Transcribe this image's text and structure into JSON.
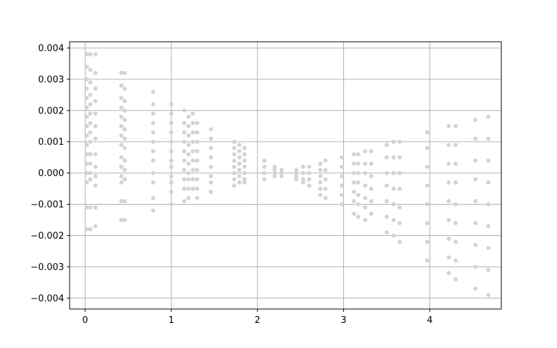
{
  "chart_data": {
    "type": "scatter",
    "title": "",
    "xlabel": "",
    "ylabel": "",
    "xlim": [
      -0.18,
      4.83
    ],
    "ylim": [
      -0.00435,
      0.0042
    ],
    "grid": true,
    "point_color": "#d3d3d3",
    "grid_color": "#b0b0b0",
    "x_ticks": [
      {
        "value": 0,
        "label": "0"
      },
      {
        "value": 1,
        "label": "1"
      },
      {
        "value": 2,
        "label": "2"
      },
      {
        "value": 3,
        "label": "3"
      },
      {
        "value": 4,
        "label": "4"
      }
    ],
    "y_ticks": [
      {
        "value": 0.004,
        "label": "0.004"
      },
      {
        "value": 0.003,
        "label": "0.003"
      },
      {
        "value": 0.002,
        "label": "0.002"
      },
      {
        "value": 0.001,
        "label": "0.001"
      },
      {
        "value": 0.0,
        "label": "0.000"
      },
      {
        "value": -0.001,
        "label": "−0.001"
      },
      {
        "value": -0.002,
        "label": "−0.002"
      },
      {
        "value": -0.003,
        "label": "−0.003"
      },
      {
        "value": -0.004,
        "label": "−0.004"
      }
    ],
    "series": [
      {
        "points": [
          [
            0.02,
            0.0038
          ],
          [
            0.02,
            0.0034
          ],
          [
            0.02,
            0.003
          ],
          [
            0.02,
            0.0027
          ],
          [
            0.02,
            0.0024
          ],
          [
            0.02,
            0.0021
          ],
          [
            0.02,
            0.0018
          ],
          [
            0.02,
            0.0015
          ],
          [
            0.02,
            0.0012
          ],
          [
            0.02,
            0.0009
          ],
          [
            0.02,
            0.0006
          ],
          [
            0.02,
            0.0003
          ],
          [
            0.02,
            0.0
          ],
          [
            0.02,
            -0.0003
          ],
          [
            0.02,
            -0.0011
          ],
          [
            0.02,
            -0.0018
          ],
          [
            0.06,
            0.0038
          ],
          [
            0.06,
            0.0033
          ],
          [
            0.06,
            0.0029
          ],
          [
            0.06,
            0.0025
          ],
          [
            0.06,
            0.0022
          ],
          [
            0.06,
            0.0019
          ],
          [
            0.06,
            0.0016
          ],
          [
            0.06,
            0.0013
          ],
          [
            0.06,
            0.001
          ],
          [
            0.06,
            0.0006
          ],
          [
            0.06,
            0.0003
          ],
          [
            0.06,
            0.0
          ],
          [
            0.06,
            -0.0002
          ],
          [
            0.06,
            -0.0011
          ],
          [
            0.06,
            -0.0018
          ],
          [
            0.12,
            0.0038
          ],
          [
            0.12,
            0.0032
          ],
          [
            0.12,
            0.0027
          ],
          [
            0.12,
            0.0023
          ],
          [
            0.12,
            0.0019
          ],
          [
            0.12,
            0.0015
          ],
          [
            0.12,
            0.0011
          ],
          [
            0.12,
            0.0006
          ],
          [
            0.12,
            0.0002
          ],
          [
            0.12,
            -0.0001
          ],
          [
            0.12,
            -0.0004
          ],
          [
            0.12,
            -0.0011
          ],
          [
            0.12,
            -0.0017
          ],
          [
            0.42,
            0.0032
          ],
          [
            0.42,
            0.0028
          ],
          [
            0.42,
            0.0024
          ],
          [
            0.42,
            0.0021
          ],
          [
            0.42,
            0.0018
          ],
          [
            0.42,
            0.0015
          ],
          [
            0.42,
            0.0012
          ],
          [
            0.42,
            0.0009
          ],
          [
            0.42,
            0.0005
          ],
          [
            0.42,
            0.0002
          ],
          [
            0.42,
            -0.0001
          ],
          [
            0.42,
            -0.0003
          ],
          [
            0.42,
            -0.0009
          ],
          [
            0.42,
            -0.0015
          ],
          [
            0.46,
            0.0032
          ],
          [
            0.46,
            0.0027
          ],
          [
            0.46,
            0.0023
          ],
          [
            0.46,
            0.002
          ],
          [
            0.46,
            0.0017
          ],
          [
            0.46,
            0.0014
          ],
          [
            0.46,
            0.0011
          ],
          [
            0.46,
            0.0008
          ],
          [
            0.46,
            0.0004
          ],
          [
            0.46,
            0.0001
          ],
          [
            0.46,
            -0.0002
          ],
          [
            0.46,
            -0.0009
          ],
          [
            0.46,
            -0.0015
          ],
          [
            0.79,
            0.0026
          ],
          [
            0.79,
            0.0022
          ],
          [
            0.79,
            0.0019
          ],
          [
            0.79,
            0.0016
          ],
          [
            0.79,
            0.0013
          ],
          [
            0.79,
            0.001
          ],
          [
            0.79,
            0.0007
          ],
          [
            0.79,
            0.0004
          ],
          [
            0.79,
            0.0
          ],
          [
            0.79,
            -0.0003
          ],
          [
            0.79,
            -0.0008
          ],
          [
            0.79,
            -0.0012
          ],
          [
            1.0,
            0.0022
          ],
          [
            1.0,
            0.0019
          ],
          [
            1.0,
            0.0016
          ],
          [
            1.0,
            0.0013
          ],
          [
            1.0,
            0.001
          ],
          [
            1.0,
            0.0007
          ],
          [
            1.0,
            0.0004
          ],
          [
            1.0,
            0.0002
          ],
          [
            1.0,
            -0.0001
          ],
          [
            1.0,
            -0.0003
          ],
          [
            1.0,
            -0.0006
          ],
          [
            1.0,
            -0.001
          ],
          [
            1.15,
            0.002
          ],
          [
            1.15,
            0.0016
          ],
          [
            1.15,
            0.0013
          ],
          [
            1.15,
            0.001
          ],
          [
            1.15,
            0.0007
          ],
          [
            1.15,
            0.0004
          ],
          [
            1.15,
            0.0001
          ],
          [
            1.15,
            -0.0002
          ],
          [
            1.15,
            -0.0005
          ],
          [
            1.15,
            -0.0009
          ],
          [
            1.2,
            0.0018
          ],
          [
            1.2,
            0.0015
          ],
          [
            1.2,
            0.0012
          ],
          [
            1.2,
            0.0009
          ],
          [
            1.2,
            0.0006
          ],
          [
            1.2,
            0.0003
          ],
          [
            1.2,
            0.0
          ],
          [
            1.2,
            -0.0002
          ],
          [
            1.2,
            -0.0005
          ],
          [
            1.2,
            -0.0008
          ],
          [
            1.25,
            0.0019
          ],
          [
            1.25,
            0.0016
          ],
          [
            1.25,
            0.0013
          ],
          [
            1.25,
            0.001
          ],
          [
            1.25,
            0.0007
          ],
          [
            1.25,
            0.0004
          ],
          [
            1.25,
            0.0001
          ],
          [
            1.25,
            -0.0002
          ],
          [
            1.25,
            -0.0005
          ],
          [
            1.3,
            0.0016
          ],
          [
            1.3,
            0.0013
          ],
          [
            1.3,
            0.001
          ],
          [
            1.3,
            0.0007
          ],
          [
            1.3,
            0.0004
          ],
          [
            1.3,
            0.0001
          ],
          [
            1.3,
            -0.0002
          ],
          [
            1.3,
            -0.0005
          ],
          [
            1.3,
            -0.0008
          ],
          [
            1.46,
            0.0014
          ],
          [
            1.46,
            0.0011
          ],
          [
            1.46,
            0.0008
          ],
          [
            1.46,
            0.0005
          ],
          [
            1.46,
            0.0002
          ],
          [
            1.46,
            -0.0001
          ],
          [
            1.46,
            -0.0003
          ],
          [
            1.46,
            -0.0006
          ],
          [
            1.73,
            0.001
          ],
          [
            1.73,
            0.0008
          ],
          [
            1.73,
            0.0006
          ],
          [
            1.73,
            0.0004
          ],
          [
            1.73,
            0.0002
          ],
          [
            1.73,
            0.0
          ],
          [
            1.73,
            -0.0002
          ],
          [
            1.73,
            -0.0004
          ],
          [
            1.79,
            0.0009
          ],
          [
            1.79,
            0.0007
          ],
          [
            1.79,
            0.0005
          ],
          [
            1.79,
            0.0003
          ],
          [
            1.79,
            0.0001
          ],
          [
            1.79,
            -0.0001
          ],
          [
            1.79,
            -0.0003
          ],
          [
            1.85,
            0.0008
          ],
          [
            1.85,
            0.0006
          ],
          [
            1.85,
            0.0004
          ],
          [
            1.85,
            0.0002
          ],
          [
            1.85,
            0.0
          ],
          [
            1.85,
            -0.0002
          ],
          [
            1.85,
            -0.0003
          ],
          [
            2.08,
            0.0004
          ],
          [
            2.08,
            0.0002
          ],
          [
            2.08,
            0.0
          ],
          [
            2.08,
            -0.0002
          ],
          [
            2.2,
            0.0002
          ],
          [
            2.2,
            0.0001
          ],
          [
            2.2,
            0.0
          ],
          [
            2.2,
            -0.0001
          ],
          [
            2.28,
            0.0001
          ],
          [
            2.28,
            0.0
          ],
          [
            2.28,
            -0.0001
          ],
          [
            2.45,
            0.0001
          ],
          [
            2.45,
            0.0
          ],
          [
            2.45,
            -0.0001
          ],
          [
            2.45,
            -0.0002
          ],
          [
            2.53,
            0.0002
          ],
          [
            2.53,
            0.0
          ],
          [
            2.53,
            -0.0002
          ],
          [
            2.53,
            -0.0003
          ],
          [
            2.6,
            0.0002
          ],
          [
            2.6,
            0.0
          ],
          [
            2.6,
            -0.0002
          ],
          [
            2.6,
            -0.0004
          ],
          [
            2.73,
            0.0003
          ],
          [
            2.73,
            0.0001
          ],
          [
            2.73,
            -0.0001
          ],
          [
            2.73,
            -0.0003
          ],
          [
            2.73,
            -0.0005
          ],
          [
            2.73,
            -0.0007
          ],
          [
            2.79,
            0.0004
          ],
          [
            2.79,
            0.0001
          ],
          [
            2.79,
            -0.0002
          ],
          [
            2.79,
            -0.0005
          ],
          [
            2.79,
            -0.0008
          ],
          [
            2.98,
            0.0005
          ],
          [
            2.98,
            0.0002
          ],
          [
            2.98,
            -0.0001
          ],
          [
            2.98,
            -0.0004
          ],
          [
            2.98,
            -0.0007
          ],
          [
            2.98,
            -0.001
          ],
          [
            3.12,
            0.0006
          ],
          [
            3.12,
            0.0003
          ],
          [
            3.12,
            0.0
          ],
          [
            3.12,
            -0.0003
          ],
          [
            3.12,
            -0.0006
          ],
          [
            3.12,
            -0.0009
          ],
          [
            3.12,
            -0.0013
          ],
          [
            3.17,
            0.0006
          ],
          [
            3.17,
            0.0003
          ],
          [
            3.17,
            0.0
          ],
          [
            3.17,
            -0.0003
          ],
          [
            3.17,
            -0.0007
          ],
          [
            3.17,
            -0.001
          ],
          [
            3.17,
            -0.0014
          ],
          [
            3.25,
            0.0007
          ],
          [
            3.25,
            0.0003
          ],
          [
            3.25,
            0.0
          ],
          [
            3.25,
            -0.0004
          ],
          [
            3.25,
            -0.0008
          ],
          [
            3.25,
            -0.0011
          ],
          [
            3.25,
            -0.0015
          ],
          [
            3.32,
            0.0007
          ],
          [
            3.32,
            0.0003
          ],
          [
            3.32,
            -0.0001
          ],
          [
            3.32,
            -0.0005
          ],
          [
            3.32,
            -0.0009
          ],
          [
            3.32,
            -0.0013
          ],
          [
            3.5,
            0.0009
          ],
          [
            3.5,
            0.0005
          ],
          [
            3.5,
            0.0
          ],
          [
            3.5,
            -0.0004
          ],
          [
            3.5,
            -0.0009
          ],
          [
            3.5,
            -0.0014
          ],
          [
            3.5,
            -0.0019
          ],
          [
            3.58,
            0.001
          ],
          [
            3.58,
            0.0005
          ],
          [
            3.58,
            0.0
          ],
          [
            3.58,
            -0.0005
          ],
          [
            3.58,
            -0.001
          ],
          [
            3.58,
            -0.0015
          ],
          [
            3.58,
            -0.002
          ],
          [
            3.65,
            0.001
          ],
          [
            3.65,
            0.0005
          ],
          [
            3.65,
            0.0
          ],
          [
            3.65,
            -0.0005
          ],
          [
            3.65,
            -0.0011
          ],
          [
            3.65,
            -0.0016
          ],
          [
            3.65,
            -0.0022
          ],
          [
            3.97,
            0.0013
          ],
          [
            3.97,
            0.0008
          ],
          [
            3.97,
            0.0002
          ],
          [
            3.97,
            -0.0004
          ],
          [
            3.97,
            -0.001
          ],
          [
            3.97,
            -0.0016
          ],
          [
            3.97,
            -0.0022
          ],
          [
            3.97,
            -0.0028
          ],
          [
            4.22,
            0.0015
          ],
          [
            4.22,
            0.0009
          ],
          [
            4.22,
            0.0003
          ],
          [
            4.22,
            -0.0003
          ],
          [
            4.22,
            -0.0009
          ],
          [
            4.22,
            -0.0015
          ],
          [
            4.22,
            -0.0021
          ],
          [
            4.22,
            -0.0027
          ],
          [
            4.22,
            -0.0032
          ],
          [
            4.3,
            0.0015
          ],
          [
            4.3,
            0.0009
          ],
          [
            4.3,
            0.0003
          ],
          [
            4.3,
            -0.0003
          ],
          [
            4.3,
            -0.001
          ],
          [
            4.3,
            -0.0016
          ],
          [
            4.3,
            -0.0022
          ],
          [
            4.3,
            -0.0028
          ],
          [
            4.3,
            -0.0034
          ],
          [
            4.53,
            0.0017
          ],
          [
            4.53,
            0.0011
          ],
          [
            4.53,
            0.0004
          ],
          [
            4.53,
            -0.0002
          ],
          [
            4.53,
            -0.0009
          ],
          [
            4.53,
            -0.0016
          ],
          [
            4.53,
            -0.0023
          ],
          [
            4.53,
            -0.003
          ],
          [
            4.53,
            -0.0037
          ],
          [
            4.68,
            0.0018
          ],
          [
            4.68,
            0.0011
          ],
          [
            4.68,
            0.0004
          ],
          [
            4.68,
            -0.0003
          ],
          [
            4.68,
            -0.001
          ],
          [
            4.68,
            -0.0017
          ],
          [
            4.68,
            -0.0024
          ],
          [
            4.68,
            -0.0031
          ],
          [
            4.68,
            -0.0039
          ]
        ]
      }
    ]
  }
}
